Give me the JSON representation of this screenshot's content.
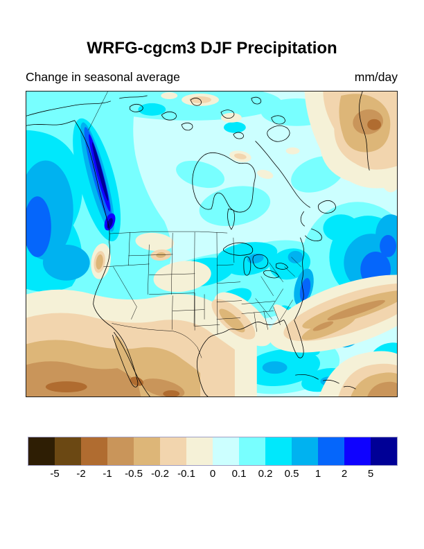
{
  "header": {
    "title": "WRFG-cgcm3 DJF Precipitation",
    "subtitle_left": "Change in seasonal average",
    "units_right": "mm/day"
  },
  "colorbar": {
    "colors": [
      "#2e1e04",
      "#6b4813",
      "#b06c30",
      "#c9955a",
      "#ddb678",
      "#f2d5ae",
      "#f5f1d7",
      "#ccffff",
      "#78ffff",
      "#00e8fc",
      "#00b2f0",
      "#0566fb",
      "#0f02ff",
      "#000096"
    ],
    "labels": [
      "-5",
      "-2",
      "-1",
      "-0.5",
      "-0.2",
      "-0.1",
      "0",
      "0.1",
      "0.2",
      "0.5",
      "1",
      "2",
      "5"
    ]
  },
  "chart_data": {
    "type": "heatmap",
    "subtype": "filled-contour-map",
    "title": "WRFG-cgcm3 DJF Precipitation",
    "subtitle": "Change in seasonal average",
    "units": "mm/day",
    "region_shown": "North America with surrounding Pacific and Atlantic oceans, state and country borders drawn",
    "contour_levels": [
      -5,
      -2,
      -1,
      -0.5,
      -0.2,
      -0.1,
      0,
      0.1,
      0.2,
      0.5,
      1,
      2,
      5
    ],
    "palette": [
      "#2e1e04",
      "#6b4813",
      "#b06c30",
      "#c9955a",
      "#ddb678",
      "#f2d5ae",
      "#f5f1d7",
      "#ccffff",
      "#78ffff",
      "#00e8fc",
      "#00b2f0",
      "#0566fb",
      "#0f02ff",
      "#000096"
    ],
    "legend_position": "bottom",
    "readings": [
      {
        "area": "British Columbia / SE Alaska coastal strip",
        "value_mm_day": "2 to >5 (strong increase, narrow dark blue band)"
      },
      {
        "area": "Northeast Pacific off coast",
        "value_mm_day": "0.5 to 2"
      },
      {
        "area": "Western and central Canada",
        "value_mm_day": "0.1 to 0.5"
      },
      {
        "area": "Arctic Canada / Hudson Bay",
        "value_mm_day": "0 to 0.2"
      },
      {
        "area": "Greenland (top right)",
        "value_mm_day": "-1 to -0.1 (decrease)"
      },
      {
        "area": "US Southwest, Baja California, Mexico, subtropical East Pacific (bottom left)",
        "value_mm_day": "-2 to -0.2 (decrease)"
      },
      {
        "area": "Central US plains",
        "value_mm_day": "0 to 0.5"
      },
      {
        "area": "Great Lakes and Northeast US",
        "value_mm_day": "0.2 to 1"
      },
      {
        "area": "Ohio Valley / Ozark tan streak",
        "value_mm_day": "-0.2 to 0"
      },
      {
        "area": "Southeast US, Gulf of Mexico, Caribbean",
        "value_mm_day": "0.2 to 1 patches"
      },
      {
        "area": "Mid-latitude west Atlantic",
        "value_mm_day": "0.5 to 2"
      },
      {
        "area": "Subtropical Atlantic diagonal band",
        "value_mm_day": "-1 to -0.1 (decrease)"
      },
      {
        "area": "Tropical Atlantic bottom-right corner",
        "value_mm_day": "-1 to -0.5 (decrease)"
      }
    ]
  }
}
